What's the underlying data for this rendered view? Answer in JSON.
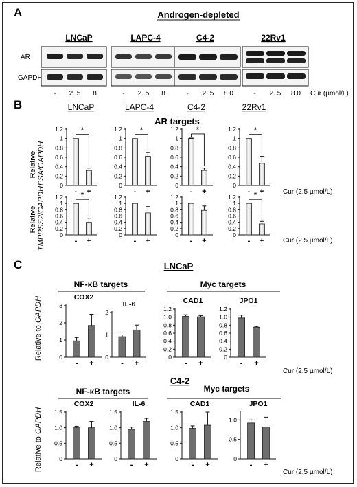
{
  "panel_a": {
    "letter": "A",
    "header": "Androgen-depleted",
    "row_labels": [
      "AR",
      "GAPDH"
    ],
    "cell_lines": [
      "LNCaP",
      "LAPC-4",
      "C4-2",
      "22Rv1"
    ],
    "lane_labels": [
      [
        "-",
        "2. 5",
        "8"
      ],
      [
        "-",
        "2. 5",
        "8"
      ],
      [
        "-",
        "2. 5",
        "8.0"
      ],
      [
        "-",
        "2. 5",
        "8.0"
      ]
    ],
    "dose_label": "Cur (µmol/L)"
  },
  "panel_b": {
    "letter": "B",
    "cell_lines": [
      "LNCaP",
      "LAPC-4",
      "C4-2",
      "22Rv1"
    ],
    "targets_title": "AR targets",
    "row1_ylabel": [
      "Relative",
      "PSA/GAPDH"
    ],
    "row2_ylabel": [
      "Relative",
      "TMPRSS2/GAPDH"
    ],
    "treatment_label": "Cur (2.5 µmol/L)",
    "x_labels": [
      "-",
      "+"
    ],
    "y_ticks": [
      "0",
      "0.2",
      "0.4",
      "0.6",
      "0.8",
      "1",
      "1.2"
    ],
    "significance_mark": "*"
  },
  "panel_c": {
    "letter": "C",
    "lncap_title": "LNCaP",
    "c42_title": "C4-2",
    "nfkb_title": "NF-κB targets",
    "myc_title": "Myc targets",
    "ylabel_prefix": "Relative to ",
    "ylabel_gene": "GAPDH",
    "treatment_label": "Cur (2.5 µmol/L)",
    "x_labels": [
      "-",
      "+"
    ]
  },
  "chart_data": [
    {
      "type": "bar",
      "panel": "B",
      "title": "LNCaP",
      "ylabel": "Relative PSA/GAPDH",
      "categories": [
        "-",
        "+"
      ],
      "values": [
        1.0,
        0.32
      ],
      "errors": [
        0.0,
        0.05
      ],
      "ylim": [
        0,
        1.2
      ],
      "y_ticks": [
        0,
        0.2,
        0.4,
        0.6,
        0.8,
        1,
        1.2
      ],
      "significant": true
    },
    {
      "type": "bar",
      "panel": "B",
      "title": "LAPC-4",
      "ylabel": "Relative PSA/GAPDH",
      "categories": [
        "-",
        "+"
      ],
      "values": [
        1.0,
        0.62
      ],
      "errors": [
        0.0,
        0.08
      ],
      "ylim": [
        0,
        1.2
      ],
      "y_ticks": [
        0,
        0.2,
        0.4,
        0.6,
        0.8,
        1,
        1.2
      ],
      "significant": true
    },
    {
      "type": "bar",
      "panel": "B",
      "title": "C4-2",
      "ylabel": "Relative PSA/GAPDH",
      "categories": [
        "-",
        "+"
      ],
      "values": [
        1.0,
        0.32
      ],
      "errors": [
        0.01,
        0.05
      ],
      "ylim": [
        0,
        1.2
      ],
      "y_ticks": [
        0,
        0.2,
        0.4,
        0.6,
        0.8,
        1,
        1.2
      ],
      "significant": true
    },
    {
      "type": "bar",
      "panel": "B",
      "title": "22Rv1",
      "ylabel": "Relative PSA/GAPDH",
      "categories": [
        "-",
        "+"
      ],
      "values": [
        1.0,
        0.47
      ],
      "errors": [
        0.0,
        0.15
      ],
      "ylim": [
        0,
        1.2
      ],
      "y_ticks": [
        0,
        0.2,
        0.4,
        0.6,
        0.8,
        1,
        1.2
      ],
      "significant": true
    },
    {
      "type": "bar",
      "panel": "B",
      "title": "LNCaP",
      "ylabel": "Relative TMPRSS2/GAPDH",
      "categories": [
        "-",
        "+"
      ],
      "values": [
        1.0,
        0.4
      ],
      "errors": [
        0.0,
        0.13
      ],
      "ylim": [
        0,
        1.2
      ],
      "y_ticks": [
        0,
        0.2,
        0.4,
        0.6,
        0.8,
        1,
        1.2
      ],
      "significant": true
    },
    {
      "type": "bar",
      "panel": "B",
      "title": "LAPC-4",
      "ylabel": "Relative TMPRSS2/GAPDH",
      "categories": [
        "-",
        "+"
      ],
      "values": [
        1.0,
        0.7
      ],
      "errors": [
        0.0,
        0.2
      ],
      "ylim": [
        0,
        1.2
      ],
      "y_ticks": [
        0,
        0.2,
        0.4,
        0.6,
        0.8,
        1,
        1.2
      ],
      "significant": false
    },
    {
      "type": "bar",
      "panel": "B",
      "title": "C4-2",
      "ylabel": "Relative TMPRSS2/GAPDH",
      "categories": [
        "-",
        "+"
      ],
      "values": [
        1.0,
        0.78
      ],
      "errors": [
        0.0,
        0.14
      ],
      "ylim": [
        0,
        1.2
      ],
      "y_ticks": [
        0,
        0.2,
        0.4,
        0.6,
        0.8,
        1,
        1.2
      ],
      "significant": false
    },
    {
      "type": "bar",
      "panel": "B",
      "title": "22Rv1",
      "ylabel": "Relative TMPRSS2/GAPDH",
      "categories": [
        "-",
        "+"
      ],
      "values": [
        1.0,
        0.35
      ],
      "errors": [
        0.0,
        0.08
      ],
      "ylim": [
        0,
        1.2
      ],
      "y_ticks": [
        0,
        0.2,
        0.4,
        0.6,
        0.8,
        1,
        1.2
      ],
      "significant": true
    },
    {
      "type": "bar",
      "panel": "C",
      "cell_line": "LNCaP",
      "title": "COX2",
      "ylabel": "Relative to GAPDH",
      "categories": [
        "-",
        "+"
      ],
      "values": [
        0.95,
        1.85
      ],
      "errors": [
        0.2,
        0.65
      ],
      "ylim": [
        0,
        3
      ],
      "y_ticks": [
        0,
        1,
        2,
        3
      ]
    },
    {
      "type": "bar",
      "panel": "C",
      "cell_line": "LNCaP",
      "title": "IL-6",
      "ylabel": "Relative to GAPDH",
      "categories": [
        "-",
        "+"
      ],
      "values": [
        0.92,
        1.22
      ],
      "errors": [
        0.08,
        0.22
      ],
      "ylim": [
        0,
        2
      ],
      "y_ticks": [
        0,
        1,
        2
      ]
    },
    {
      "type": "bar",
      "panel": "C",
      "cell_line": "LNCaP",
      "title": "CAD1",
      "ylabel": "Relative to GAPDH",
      "categories": [
        "-",
        "+"
      ],
      "values": [
        1.02,
        1.01
      ],
      "errors": [
        0.04,
        0.03
      ],
      "ylim": [
        0,
        1.2
      ],
      "y_ticks": [
        0,
        0.2,
        0.4,
        0.6,
        0.8,
        1.0,
        1.2
      ]
    },
    {
      "type": "bar",
      "panel": "C",
      "cell_line": "LNCaP",
      "title": "JPO1",
      "ylabel": "Relative to GAPDH",
      "categories": [
        "-",
        "+"
      ],
      "values": [
        0.98,
        0.75
      ],
      "errors": [
        0.07,
        0.02
      ],
      "ylim": [
        0,
        1.2
      ],
      "y_ticks": [
        0,
        0.2,
        0.4,
        0.6,
        0.8,
        1.0,
        1.2
      ]
    },
    {
      "type": "bar",
      "panel": "C",
      "cell_line": "C4-2",
      "title": "COX2",
      "ylabel": "Relative to GAPDH",
      "categories": [
        "-",
        "+"
      ],
      "values": [
        1.0,
        1.0
      ],
      "errors": [
        0.05,
        0.2
      ],
      "ylim": [
        0,
        1.5
      ],
      "y_ticks": [
        0,
        0.5,
        1.0,
        1.5
      ]
    },
    {
      "type": "bar",
      "panel": "C",
      "cell_line": "C4-2",
      "title": "IL-6",
      "ylabel": "Relative to GAPDH",
      "categories": [
        "-",
        "+"
      ],
      "values": [
        0.95,
        1.2
      ],
      "errors": [
        0.07,
        0.1
      ],
      "ylim": [
        0,
        1.5
      ],
      "y_ticks": [
        0,
        0.5,
        1.0,
        1.5
      ]
    },
    {
      "type": "bar",
      "panel": "C",
      "cell_line": "C4-2",
      "title": "CAD1",
      "ylabel": "Relative to GAPDH",
      "categories": [
        "-",
        "+"
      ],
      "values": [
        0.98,
        1.08
      ],
      "errors": [
        0.08,
        0.42
      ],
      "ylim": [
        0,
        1.5
      ],
      "y_ticks": [
        0,
        0.5,
        1.0,
        1.5
      ]
    },
    {
      "type": "bar",
      "panel": "C",
      "cell_line": "C4-2",
      "title": "JPO1",
      "ylabel": "Relative to GAPDH",
      "categories": [
        "-",
        "+"
      ],
      "values": [
        0.92,
        0.82
      ],
      "errors": [
        0.08,
        0.25
      ],
      "ylim": [
        0,
        1.2
      ],
      "y_ticks": [
        0,
        0.5,
        1.0
      ]
    }
  ]
}
